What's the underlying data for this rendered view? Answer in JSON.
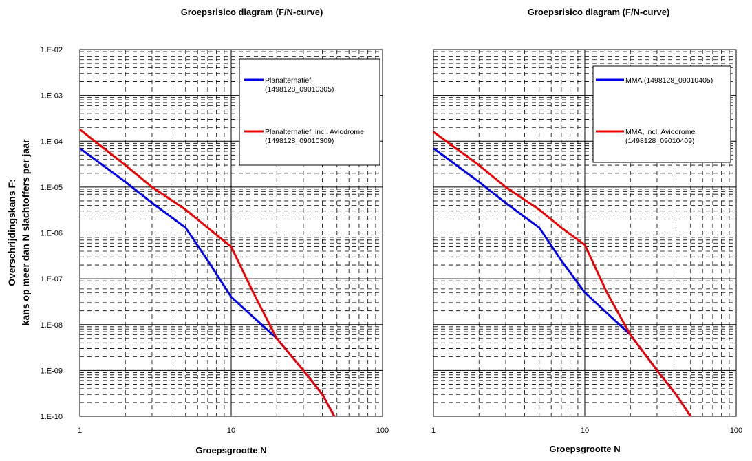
{
  "chart_data": [
    {
      "type": "line",
      "title": "Groepsrisico diagram (F/N-curve)",
      "xlabel": "Groepsgrootte N",
      "ylabel": [
        "Overschrijdingskans F:",
        "kans op meer dan N slachtoffers per jaar"
      ],
      "xscale": "log",
      "yscale": "log",
      "xlim": [
        1,
        100
      ],
      "ylim": [
        1e-10,
        0.01
      ],
      "x_tick_labels": [
        "1",
        "10",
        "100"
      ],
      "y_tick_labels": [
        "1.E-02",
        "1.E-03",
        "1.E-04",
        "1.E-05",
        "1.E-06",
        "1.E-07",
        "1.E-08",
        "1.E-09",
        "1.E-10"
      ],
      "grid": true,
      "legend_position": "top-right",
      "series": [
        {
          "name": "Planalternatief (1498128_09010305)",
          "legend_lines": [
            "Planalternatief",
            "(1498128_09010305)"
          ],
          "color": "#0000ee",
          "x": [
            1,
            2,
            3,
            5,
            7,
            10,
            20,
            30,
            40,
            48
          ],
          "y": [
            7e-05,
            1.3e-05,
            4.5e-06,
            1.3e-06,
            2.5e-07,
            4e-08,
            5e-09,
            1e-09,
            3e-10,
            1e-10
          ]
        },
        {
          "name": "Planalternatief, incl. Aviodrome (1498128_09010309)",
          "legend_lines": [
            "Planalternatief, incl. Aviodrome",
            "(1498128_09010309)"
          ],
          "color": "#ee0000",
          "x": [
            1,
            2,
            3,
            5,
            7,
            10,
            14,
            20,
            30,
            40,
            48
          ],
          "y": [
            0.00018,
            3e-05,
            1e-05,
            3.2e-06,
            1.3e-06,
            5e-07,
            5e-08,
            5e-09,
            1e-09,
            3e-10,
            1e-10
          ]
        }
      ]
    },
    {
      "type": "line",
      "title": "Groepsrisico diagram (F/N-curve)",
      "xlabel": "Groepsgrootte N",
      "ylabel": [],
      "xscale": "log",
      "yscale": "log",
      "xlim": [
        1,
        100
      ],
      "ylim": [
        1e-10,
        0.01
      ],
      "x_tick_labels": [
        "1",
        "10",
        "100"
      ],
      "y_tick_labels": [],
      "grid": true,
      "legend_position": "top-right",
      "series": [
        {
          "name": "MMA (1498128_09010405)",
          "legend_lines": [
            "MMA (1498128_09010405)"
          ],
          "color": "#0000ee",
          "x": [
            1,
            2,
            3,
            5,
            7,
            10,
            20,
            30,
            40,
            50
          ],
          "y": [
            7e-05,
            1.3e-05,
            4.5e-06,
            1.3e-06,
            2.5e-07,
            5e-08,
            6e-09,
            1e-09,
            3e-10,
            1e-10
          ]
        },
        {
          "name": "MMA, incl. Aviodrome (1498128_09010409)",
          "legend_lines": [
            "MMA, incl. Aviodrome",
            "(1498128_09010409)"
          ],
          "color": "#ee0000",
          "x": [
            1,
            2,
            3,
            5,
            7,
            10,
            14,
            20,
            30,
            40,
            50
          ],
          "y": [
            0.00016,
            3e-05,
            1e-05,
            3.2e-06,
            1.3e-06,
            5.5e-07,
            5e-08,
            6e-09,
            1e-09,
            3e-10,
            1e-10
          ]
        }
      ]
    }
  ]
}
